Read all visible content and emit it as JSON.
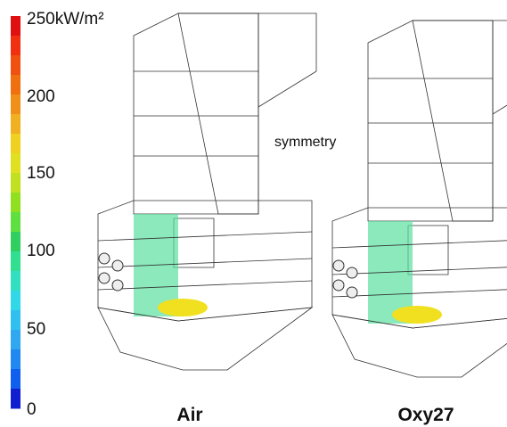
{
  "colorbar": {
    "ticks": [
      "250kW/m²",
      "200",
      "150",
      "100",
      "50",
      "0"
    ]
  },
  "panels": [
    {
      "label": "Air"
    },
    {
      "label": "Oxy27",
      "annotation": "symmetry"
    }
  ]
}
